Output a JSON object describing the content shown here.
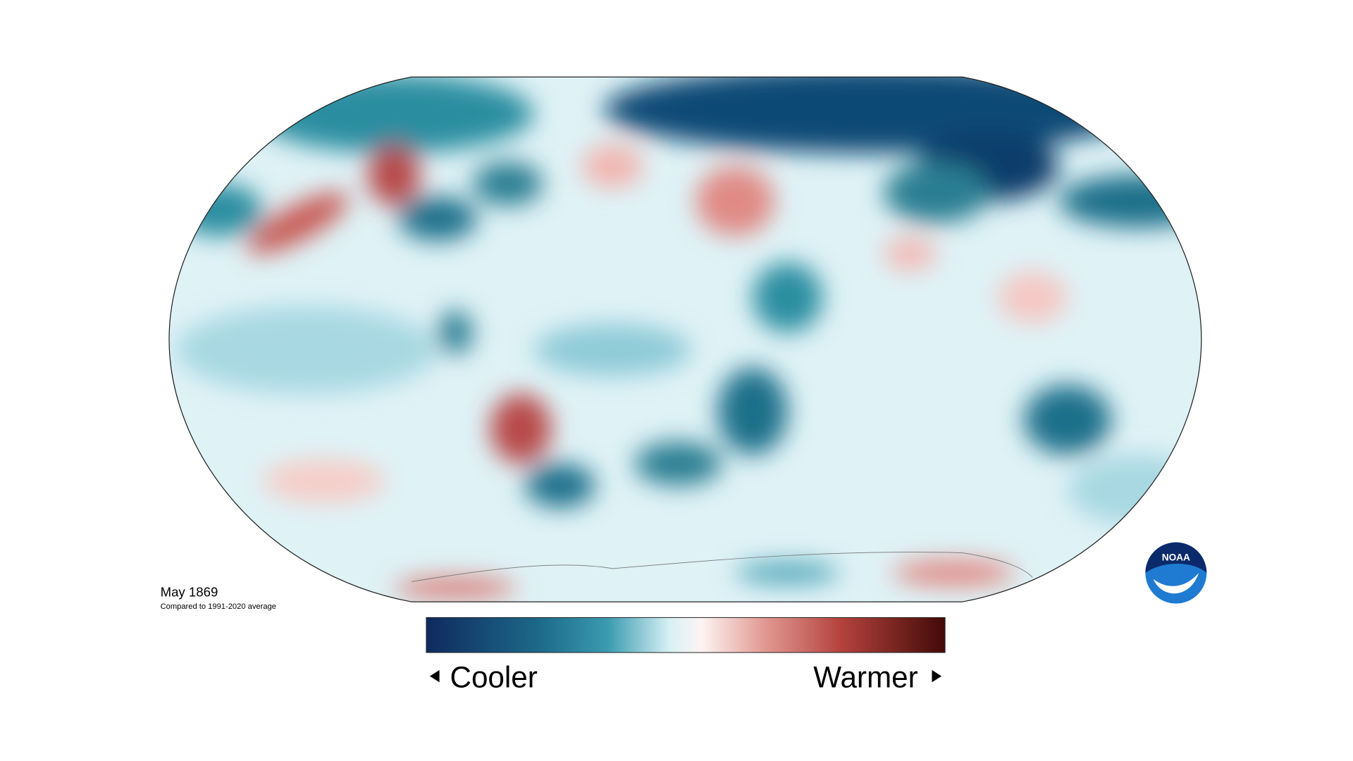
{
  "map": {
    "date": "May 1869",
    "subtitle": "Compared to 1991-2020 average",
    "legend": {
      "low": "Cooler",
      "high": "Warmer"
    },
    "logo": "NOAA"
  }
}
